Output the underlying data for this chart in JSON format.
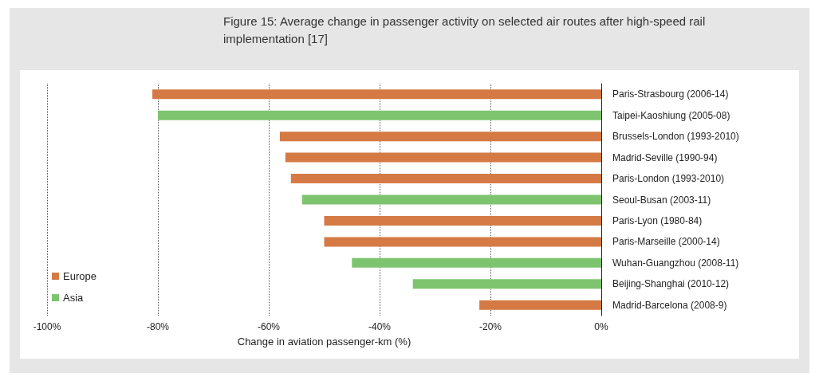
{
  "chart_data": {
    "type": "bar",
    "orientation": "horizontal",
    "title": "Figure 15: Average change in passenger activity on selected air routes after high-speed rail implementation [17]",
    "xlabel": "Change in aviation passenger-km (%)",
    "categories": [
      "Paris-Strasbourg (2006-14)",
      "Taipei-Kaoshiung (2005-08)",
      "Brussels-London (1993-2010)",
      "Madrid-Seville (1990-94)",
      "Paris-London (1993-2010)",
      "Seoul-Busan (2003-11)",
      "Paris-Lyon (1980-84)",
      "Paris-Marseille (2000-14)",
      "Wuhan-Guangzhou (2008-11)",
      "Beijing-Shanghai (2010-12)",
      "Madrid-Barcelona (2008-9)"
    ],
    "series": [
      {
        "name": "Europe",
        "color": "#d57a45",
        "values": [
          -81,
          null,
          -58,
          -57,
          -56,
          null,
          -50,
          -50,
          null,
          null,
          -22
        ]
      },
      {
        "name": "Asia",
        "color": "#7ec46f",
        "values": [
          null,
          -80,
          null,
          null,
          null,
          -54,
          null,
          null,
          -45,
          -34,
          null
        ]
      }
    ],
    "xlim": [
      -100,
      0
    ],
    "xticks": [
      {
        "value": -100,
        "label": "-100%"
      },
      {
        "value": -80,
        "label": "-80%"
      },
      {
        "value": -60,
        "label": "-60%"
      },
      {
        "value": -40,
        "label": "-40%"
      },
      {
        "value": -20,
        "label": "-20%"
      },
      {
        "value": 0,
        "label": "0%"
      }
    ],
    "grid": "x",
    "legend": "bottom left"
  }
}
